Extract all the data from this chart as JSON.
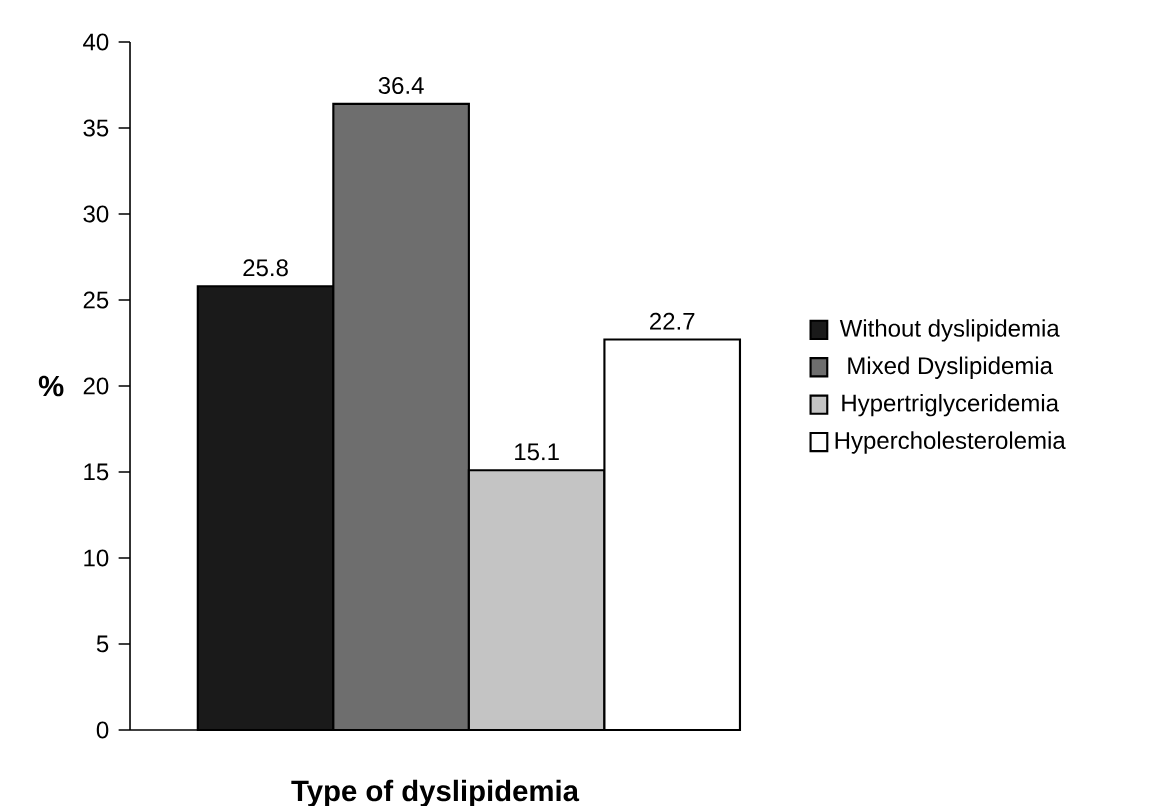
{
  "chart_data": {
    "type": "bar",
    "xlabel": "Type of dyslipidemia",
    "ylabel": "%",
    "categories": [
      null
    ],
    "series": [
      {
        "name": "Without dyslipidemia",
        "color": "#1a1a1a",
        "values": [
          25.8
        ]
      },
      {
        "name": "Mixed Dyslipidemia",
        "color": "#6e6e6e",
        "values": [
          36.4
        ]
      },
      {
        "name": "Hypertriglyceridemia",
        "color": "#c4c4c4",
        "values": [
          15.1
        ]
      },
      {
        "name": "Hypercholesterolemia",
        "color": "#ffffff",
        "values": [
          22.7
        ]
      }
    ],
    "ylim": [
      0,
      40
    ],
    "yticks": [
      0,
      5,
      10,
      15,
      20,
      25,
      30,
      35,
      40
    ],
    "data_labels": true,
    "legend": "right",
    "grid": false
  }
}
